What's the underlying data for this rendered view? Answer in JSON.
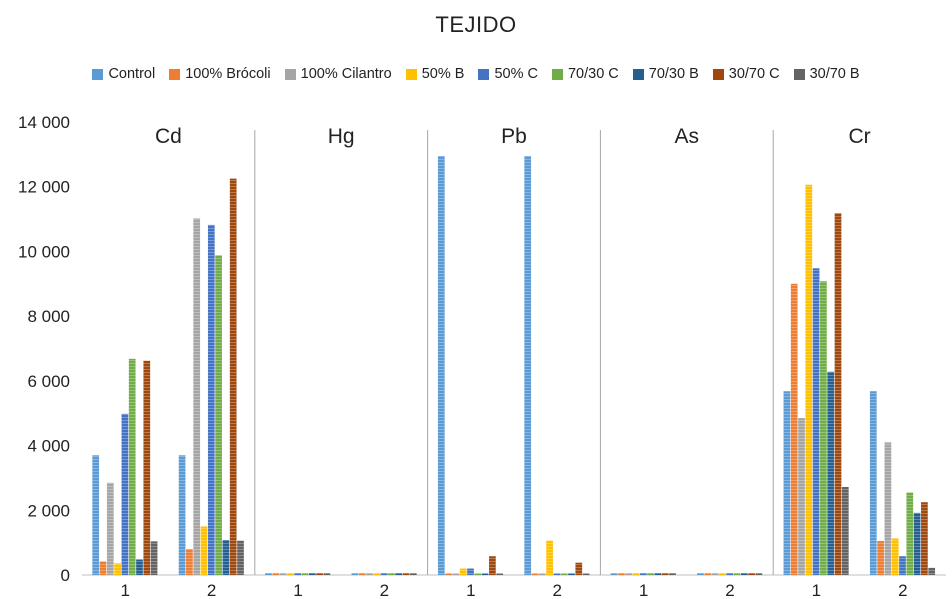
{
  "chart_data": {
    "type": "bar",
    "title": "TEJIDO",
    "ylim": [
      0,
      14000
    ],
    "yticks": [
      0,
      2000,
      4000,
      6000,
      8000,
      10000,
      12000,
      14000
    ],
    "ytick_labels": [
      "0",
      "2 000",
      "4 000",
      "6 000",
      "8 000",
      "10 000",
      "12 000",
      "14 000"
    ],
    "legend_position": "top",
    "series": [
      {
        "name": "Control",
        "color": "#5b9bd5"
      },
      {
        "name": "100% Brócoli",
        "color": "#ed7d31"
      },
      {
        "name": "100% Cilantro",
        "color": "#a5a5a5"
      },
      {
        "name": "50% B",
        "color": "#ffc000"
      },
      {
        "name": "50% C",
        "color": "#4472c4"
      },
      {
        "name": "70/30 C",
        "color": "#70ad47"
      },
      {
        "name": "70/30 B",
        "color": "#255e91"
      },
      {
        "name": "30/70 C",
        "color": "#9e480e"
      },
      {
        "name": "30/70 B",
        "color": "#636363"
      }
    ],
    "panels": [
      {
        "label": "Cd",
        "categories": [
          "1",
          "2"
        ],
        "values": [
          [
            3700,
            420,
            2850,
            360,
            4980,
            6680,
            480,
            6620,
            1040
          ],
          [
            3700,
            800,
            11020,
            1500,
            10820,
            9880,
            1080,
            12250,
            1060
          ]
        ]
      },
      {
        "label": "Hg",
        "categories": [
          "1",
          "2"
        ],
        "values": [
          [
            60,
            60,
            60,
            60,
            60,
            60,
            60,
            60,
            60
          ],
          [
            60,
            60,
            60,
            60,
            60,
            60,
            60,
            60,
            60
          ]
        ]
      },
      {
        "label": "Pb",
        "categories": [
          "1",
          "2"
        ],
        "values": [
          [
            12950,
            50,
            50,
            200,
            200,
            50,
            50,
            580,
            50
          ],
          [
            12950,
            50,
            50,
            1060,
            50,
            50,
            50,
            380,
            50
          ]
        ]
      },
      {
        "label": "As",
        "categories": [
          "1",
          "2"
        ],
        "values": [
          [
            60,
            60,
            60,
            60,
            60,
            60,
            60,
            60,
            60
          ],
          [
            60,
            60,
            60,
            60,
            60,
            60,
            60,
            60,
            60
          ]
        ]
      },
      {
        "label": "Cr",
        "categories": [
          "1",
          "2"
        ],
        "values": [
          [
            5680,
            9000,
            4850,
            12060,
            9480,
            9080,
            6280,
            11180,
            2720
          ],
          [
            5680,
            1050,
            4100,
            1130,
            580,
            2550,
            1920,
            2250,
            220
          ]
        ]
      }
    ]
  }
}
